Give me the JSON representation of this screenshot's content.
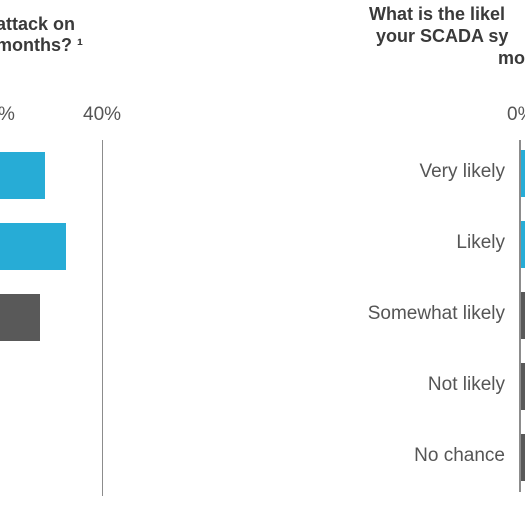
{
  "chart_data": [
    {
      "type": "bar",
      "orientation": "horizontal",
      "title_lines": [
        "attack on",
        "months? ¹"
      ],
      "tick_labels": [
        "%",
        "40%"
      ],
      "categories": [
        "",
        "",
        "",
        "",
        ""
      ],
      "values": [
        26.5,
        31.5,
        25.5,
        null,
        null
      ],
      "colors": [
        "#27acd6",
        "#27acd6",
        "#595959",
        null,
        null
      ],
      "xlim": [
        null,
        40
      ],
      "ylabel": "",
      "xlabel": ""
    },
    {
      "type": "bar",
      "orientation": "horizontal",
      "title_lines": [
        "What is the likel",
        "your SCADA sy",
        "mo"
      ],
      "tick_labels": [
        "0%"
      ],
      "categories": [
        "Very likely",
        "Likely",
        "Somewhat likely",
        "Not likely",
        "No chance"
      ],
      "values": [
        null,
        null,
        null,
        null,
        null
      ],
      "colors": [
        "#27acd6",
        "#27acd6",
        "#595959",
        "#595959",
        "#595959"
      ],
      "xlim": [
        0,
        null
      ],
      "ylabel": "",
      "xlabel": ""
    }
  ]
}
